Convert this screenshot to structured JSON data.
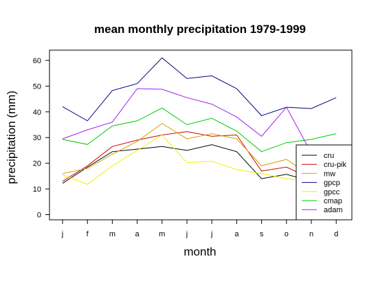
{
  "chart_data": {
    "type": "line",
    "title": "mean monthly precipitation 1979-1999",
    "xlabel": "month",
    "ylabel": "precipitation (mm)",
    "categories": [
      "j",
      "f",
      "m",
      "a",
      "m",
      "j",
      "j",
      "a",
      "s",
      "o",
      "n",
      "d"
    ],
    "ylim": [
      -2,
      64
    ],
    "yticks": [
      0,
      10,
      20,
      30,
      40,
      50,
      60
    ],
    "grid": false,
    "legend_position": "bottom-right",
    "series": [
      {
        "name": "cru",
        "color": "#000000",
        "values": [
          12.2,
          18.5,
          24.5,
          25.5,
          26.5,
          25.0,
          27.2,
          24.5,
          14.0,
          15.7,
          13.0,
          13.0
        ]
      },
      {
        "name": "cru-pik",
        "color": "#d00000",
        "values": [
          13.0,
          19.0,
          26.5,
          29.0,
          31.0,
          32.3,
          30.5,
          31.0,
          17.0,
          18.5,
          14.0,
          14.0
        ]
      },
      {
        "name": "mw",
        "color": "#d4a000",
        "values": [
          16.0,
          18.0,
          23.5,
          28.5,
          35.5,
          29.5,
          31.5,
          29.5,
          19.0,
          21.5,
          15.0,
          15.0
        ]
      },
      {
        "name": "gpcp",
        "color": "#000080",
        "values": [
          42.0,
          36.5,
          48.3,
          51.0,
          61.0,
          53.0,
          54.0,
          49.0,
          38.5,
          41.8,
          41.3,
          45.5
        ]
      },
      {
        "name": "gpcc",
        "color": "#f0f000",
        "values": [
          15.5,
          11.8,
          19.0,
          25.0,
          31.0,
          20.2,
          20.8,
          17.5,
          16.0,
          14.0,
          13.0,
          12.5
        ]
      },
      {
        "name": "cmap",
        "color": "#00c800",
        "values": [
          29.3,
          27.3,
          34.5,
          36.5,
          41.5,
          35.0,
          37.5,
          32.5,
          24.5,
          28.0,
          29.3,
          31.5
        ]
      },
      {
        "name": "adam",
        "color": "#a020f0",
        "values": [
          29.5,
          33.0,
          36.0,
          49.0,
          48.8,
          45.5,
          43.0,
          38.0,
          30.5,
          41.8,
          24.0,
          24.0
        ]
      }
    ]
  }
}
